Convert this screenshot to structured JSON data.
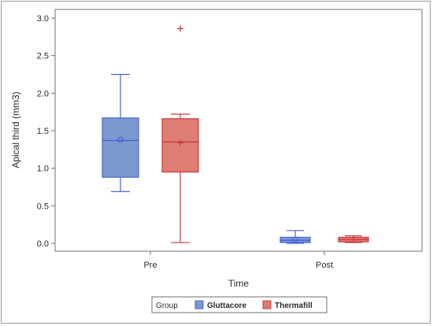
{
  "chart_data": {
    "type": "boxplot",
    "xlabel": "Time",
    "ylabel": "Apical third (mm3)",
    "ylim": [
      0,
      3.0
    ],
    "yticks": [
      "0.0",
      "0.5",
      "1.0",
      "1.5",
      "2.0",
      "2.5",
      "3.0"
    ],
    "ytick_values": [
      0,
      0.5,
      1.0,
      1.5,
      2.0,
      2.5,
      3.0
    ],
    "categories": [
      "Pre",
      "Post"
    ],
    "legend": {
      "title": "Group",
      "placement": "bottom"
    },
    "grid": false,
    "series": [
      {
        "name": "Gluttacore",
        "color": "#4a63d6",
        "fill": "#7b98cf",
        "mean_marker": "circle",
        "boxes": [
          {
            "category": "Pre",
            "min": 0.69,
            "q1": 0.88,
            "median": 1.37,
            "q3": 1.67,
            "max": 2.25,
            "mean": 1.38,
            "outliers": []
          },
          {
            "category": "Post",
            "min": 0.0,
            "q1": 0.01,
            "median": 0.04,
            "q3": 0.08,
            "max": 0.17,
            "mean": 0.05,
            "outliers": []
          }
        ]
      },
      {
        "name": "Thermafill",
        "color": "#cc3a3a",
        "fill": "#de7d74",
        "mean_marker": "plus",
        "boxes": [
          {
            "category": "Pre",
            "min": 0.01,
            "q1": 0.95,
            "median": 1.35,
            "q3": 1.66,
            "max": 1.72,
            "mean": 1.34,
            "outliers": [
              2.86
            ]
          },
          {
            "category": "Post",
            "min": 0.01,
            "q1": 0.02,
            "median": 0.05,
            "q3": 0.08,
            "max": 0.1,
            "mean": 0.05,
            "outliers": []
          }
        ]
      }
    ]
  }
}
